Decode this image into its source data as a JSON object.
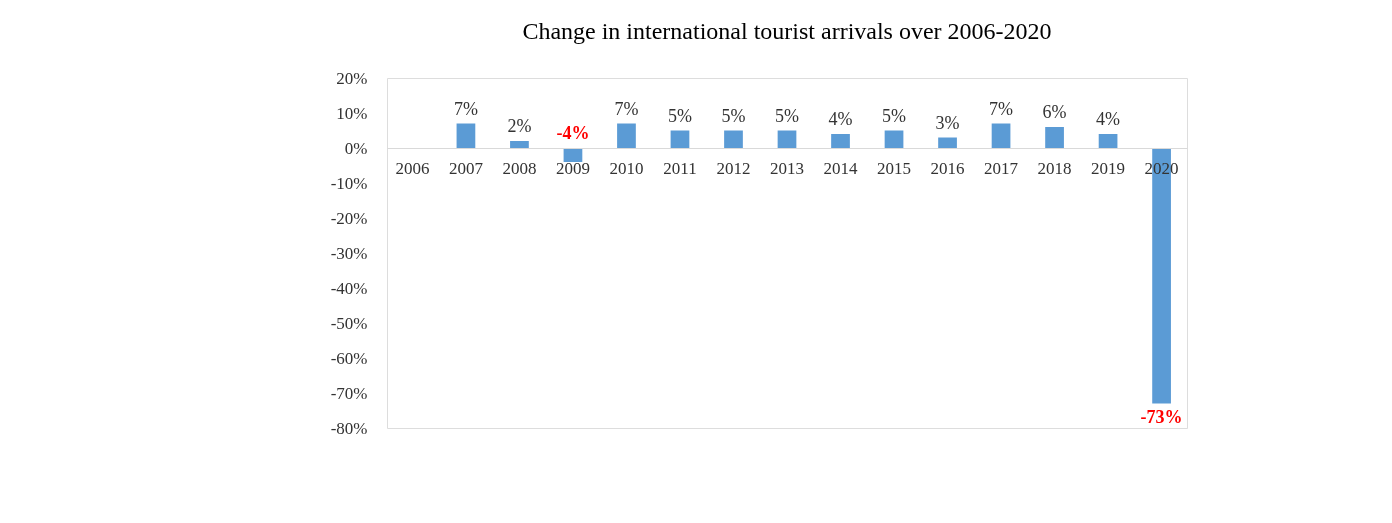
{
  "chart_data": {
    "type": "bar",
    "title": "Change in international tourist arrivals over 2006-2020",
    "categories": [
      "2006",
      "2007",
      "2008",
      "2009",
      "2010",
      "2011",
      "2012",
      "2013",
      "2014",
      "2015",
      "2016",
      "2017",
      "2018",
      "2019",
      "2020"
    ],
    "values": [
      null,
      7,
      2,
      -4,
      7,
      5,
      5,
      5,
      4,
      5,
      3,
      7,
      6,
      4,
      -73
    ],
    "value_labels": [
      null,
      "7%",
      "2%",
      "-4%",
      "7%",
      "5%",
      "5%",
      "5%",
      "4%",
      "5%",
      "3%",
      "7%",
      "6%",
      "4%",
      "-73%"
    ],
    "color": "#5b9bd5",
    "ylim": [
      -80,
      20
    ],
    "yticks": [
      {
        "value": 20,
        "label": "20%"
      },
      {
        "value": 10,
        "label": "10%"
      },
      {
        "value": 0,
        "label": "0%"
      },
      {
        "value": -10,
        "label": "-10%"
      },
      {
        "value": -20,
        "label": "-20%"
      },
      {
        "value": -30,
        "label": "-30%"
      },
      {
        "value": -40,
        "label": "-40%"
      },
      {
        "value": -50,
        "label": "-50%"
      },
      {
        "value": -60,
        "label": "-60%"
      },
      {
        "value": -70,
        "label": "-70%"
      },
      {
        "value": -80,
        "label": "-80%"
      }
    ],
    "grid": false
  }
}
